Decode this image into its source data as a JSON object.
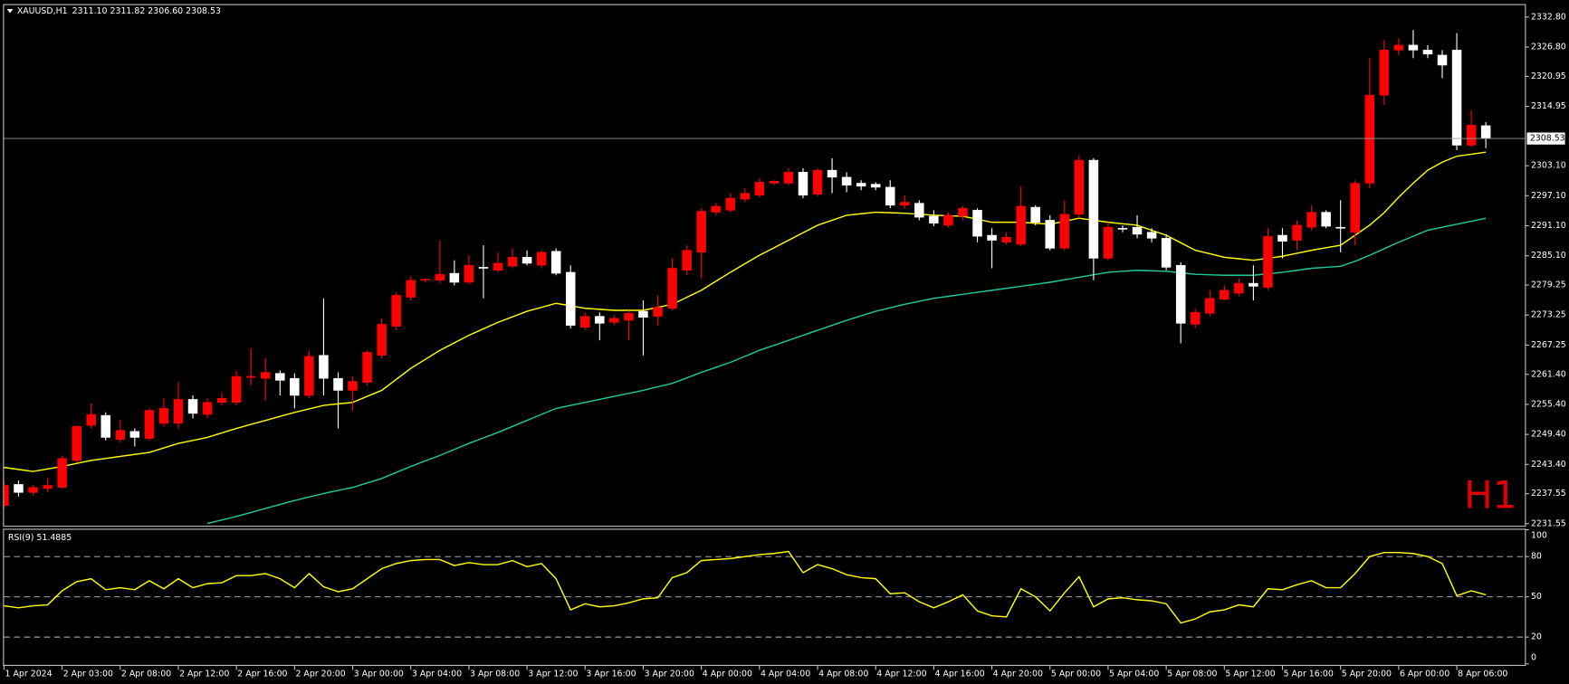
{
  "chart_data": [
    {
      "type": "candlestick",
      "title": "XAUUSD,H1",
      "info": "2311.10 2311.82 2306.60 2308.53",
      "watermark": "H1",
      "categories": [
        "1 Apr 2024",
        null,
        null,
        null,
        "2 Apr 03:00",
        null,
        null,
        null,
        "2 Apr 08:00",
        null,
        null,
        null,
        "2 Apr 12:00",
        null,
        null,
        null,
        "2 Apr 16:00",
        null,
        null,
        null,
        "2 Apr 20:00",
        null,
        null,
        null,
        "3 Apr 00:00",
        null,
        null,
        null,
        "3 Apr 04:00",
        null,
        null,
        null,
        "3 Apr 08:00",
        null,
        null,
        null,
        "3 Apr 12:00",
        null,
        null,
        null,
        "3 Apr 16:00",
        null,
        null,
        null,
        "3 Apr 20:00",
        null,
        null,
        null,
        "4 Apr 00:00",
        null,
        null,
        null,
        "4 Apr 04:00",
        null,
        null,
        null,
        "4 Apr 08:00",
        null,
        null,
        null,
        "4 Apr 12:00",
        null,
        null,
        null,
        "4 Apr 16:00",
        null,
        null,
        null,
        "4 Apr 20:00",
        null,
        null,
        null,
        "5 Apr 00:00",
        null,
        null,
        null,
        "5 Apr 04:00",
        null,
        null,
        null,
        "5 Apr 08:00",
        null,
        null,
        null,
        "5 Apr 12:00",
        null,
        null,
        null,
        "5 Apr 16:00",
        null,
        null,
        null,
        "5 Apr 20:00",
        null,
        null,
        null,
        "6 Apr 00:00",
        null,
        null,
        null,
        "8 Apr 06:00",
        null,
        null
      ],
      "open": [
        2235.2,
        2239.4,
        2237.8,
        2238.6,
        2238.8,
        2244.2,
        2251.2,
        2253.2,
        2248.4,
        2250.0,
        2248.6,
        2251.6,
        2251.6,
        2256.4,
        2253.4,
        2255.8,
        2255.8,
        2260.8,
        2260.6,
        2261.6,
        2260.6,
        2257.2,
        2265.2,
        2260.6,
        2258.2,
        2259.8,
        2265.2,
        2271.0,
        2276.8,
        2280.2,
        2280.2,
        2281.6,
        2279.8,
        2282.8,
        2282.2,
        2283.0,
        2284.8,
        2283.2,
        2286.0,
        2281.8,
        2270.8,
        2273.0,
        2271.8,
        2272.2,
        2274.0,
        2273.0,
        2274.6,
        2282.2,
        2285.8,
        2293.8,
        2294.2,
        2296.4,
        2297.2,
        2299.6,
        2299.6,
        2301.8,
        2297.4,
        2302.2,
        2300.8,
        2299.6,
        2299.4,
        2298.8,
        2295.2,
        2295.6,
        2293.0,
        2291.2,
        2293.0,
        2294.2,
        2289.2,
        2287.8,
        2287.4,
        2294.8,
        2292.2,
        2286.6,
        2293.4,
        2304.2,
        2284.6,
        2290.6,
        2290.8,
        2289.8,
        2288.6,
        2283.2,
        2271.4,
        2273.6,
        2276.4,
        2277.6,
        2279.6,
        2278.8,
        2289.2,
        2288.2,
        2290.8,
        2293.8,
        2290.8,
        2289.8,
        2299.6,
        2317.2,
        2326.2,
        2327.2,
        2326.2,
        2325.2,
        2326.2,
        2307.2,
        2311.1
      ],
      "high": [
        2240.2,
        2240.2,
        2239.2,
        2240.6,
        2245.2,
        2251.2,
        2255.6,
        2253.8,
        2252.2,
        2250.6,
        2254.6,
        2256.6,
        2259.8,
        2257.2,
        2256.6,
        2257.8,
        2262.2,
        2266.6,
        2264.6,
        2262.2,
        2261.6,
        2266.2,
        2276.6,
        2261.8,
        2261.0,
        2266.2,
        2272.6,
        2277.8,
        2281.0,
        2280.6,
        2288.2,
        2284.2,
        2285.2,
        2287.2,
        2285.8,
        2286.6,
        2286.2,
        2286.2,
        2286.6,
        2283.2,
        2273.8,
        2273.8,
        2273.2,
        2274.2,
        2276.2,
        2277.2,
        2284.6,
        2287.2,
        2294.6,
        2295.6,
        2297.6,
        2298.6,
        2300.6,
        2300.2,
        2302.6,
        2302.6,
        2302.6,
        2304.6,
        2301.8,
        2300.2,
        2299.8,
        2300.2,
        2297.2,
        2296.2,
        2294.2,
        2293.8,
        2295.0,
        2294.6,
        2290.6,
        2289.8,
        2299.0,
        2295.2,
        2293.2,
        2296.2,
        2305.2,
        2304.6,
        2291.8,
        2291.2,
        2293.2,
        2290.6,
        2289.4,
        2283.8,
        2274.6,
        2278.2,
        2279.2,
        2280.6,
        2283.2,
        2290.6,
        2290.6,
        2292.2,
        2295.2,
        2294.2,
        2296.2,
        2300.2,
        2324.6,
        2328.2,
        2328.6,
        2330.2,
        2327.2,
        2326.2,
        2329.6,
        2314.2,
        2311.82
      ],
      "low": [
        2234.6,
        2237.0,
        2237.2,
        2237.8,
        2238.6,
        2243.8,
        2250.6,
        2248.2,
        2247.8,
        2247.0,
        2248.2,
        2251.0,
        2250.6,
        2252.6,
        2252.6,
        2255.2,
        2255.2,
        2259.2,
        2256.2,
        2257.2,
        2254.6,
        2256.6,
        2257.2,
        2250.6,
        2254.2,
        2259.2,
        2264.6,
        2270.2,
        2276.2,
        2279.8,
        2279.6,
        2279.2,
        2279.4,
        2276.6,
        2281.8,
        2282.6,
        2283.2,
        2282.6,
        2281.2,
        2270.6,
        2270.2,
        2268.2,
        2271.2,
        2268.2,
        2265.2,
        2271.2,
        2274.2,
        2281.2,
        2280.6,
        2293.2,
        2293.8,
        2295.8,
        2296.8,
        2299.2,
        2299.2,
        2296.6,
        2297.0,
        2297.6,
        2297.8,
        2298.2,
        2298.2,
        2294.6,
        2294.6,
        2292.2,
        2291.0,
        2290.8,
        2292.2,
        2287.8,
        2282.6,
        2287.4,
        2287.0,
        2291.2,
        2286.2,
        2286.2,
        2292.6,
        2280.2,
        2284.2,
        2289.8,
        2288.6,
        2287.8,
        2282.2,
        2267.6,
        2270.6,
        2273.0,
        2276.2,
        2277.0,
        2276.2,
        2278.2,
        2284.6,
        2286.2,
        2290.2,
        2290.6,
        2285.8,
        2287.2,
        2298.6,
        2315.2,
        2325.2,
        2324.6,
        2324.6,
        2320.6,
        2306.2,
        2306.8,
        2306.6
      ],
      "close": [
        2239.2,
        2237.8,
        2238.8,
        2239.2,
        2244.6,
        2251.0,
        2253.4,
        2248.8,
        2250.2,
        2248.8,
        2254.2,
        2254.6,
        2256.4,
        2253.6,
        2255.8,
        2256.6,
        2261.0,
        2261.0,
        2261.8,
        2260.2,
        2257.2,
        2265.0,
        2260.6,
        2258.2,
        2260.0,
        2265.8,
        2271.4,
        2277.2,
        2280.2,
        2280.4,
        2281.4,
        2279.8,
        2283.2,
        2282.6,
        2283.6,
        2284.8,
        2283.6,
        2285.8,
        2281.6,
        2271.2,
        2273.0,
        2271.6,
        2272.6,
        2273.6,
        2272.8,
        2274.8,
        2282.6,
        2286.2,
        2294.0,
        2295.0,
        2296.6,
        2297.6,
        2299.8,
        2300.0,
        2301.8,
        2297.2,
        2302.2,
        2300.8,
        2299.2,
        2299.0,
        2298.8,
        2295.2,
        2295.8,
        2292.8,
        2291.6,
        2293.2,
        2294.6,
        2289.0,
        2288.2,
        2288.8,
        2295.0,
        2291.8,
        2286.6,
        2293.4,
        2304.2,
        2284.6,
        2290.8,
        2290.4,
        2289.4,
        2288.6,
        2282.8,
        2271.6,
        2273.8,
        2276.6,
        2278.2,
        2279.6,
        2279.0,
        2289.0,
        2288.0,
        2291.2,
        2293.8,
        2291.0,
        2290.6,
        2299.6,
        2317.2,
        2326.2,
        2327.2,
        2326.2,
        2325.4,
        2323.2,
        2307.2,
        2311.2,
        2308.53
      ],
      "bull_color": "#ff0000",
      "bear_color": "#ffffff",
      "overlays": [
        {
          "color": "#ffff00",
          "values": [
            2242.8,
            2242.4,
            2242.0,
            2242.5,
            2243.0,
            2243.6,
            2244.2,
            2244.6,
            2245.0,
            2245.4,
            2245.8,
            2246.7,
            2247.6,
            2248.2,
            2248.8,
            2249.7,
            2250.6,
            2251.4,
            2252.2,
            2253.0,
            2253.8,
            2254.5,
            2255.2,
            2255.5,
            2255.8,
            2257.0,
            2258.2,
            2260.4,
            2262.6,
            2264.4,
            2266.2,
            2267.7,
            2269.2,
            2270.5,
            2271.8,
            2272.9,
            2274.0,
            2274.8,
            2275.6,
            2275.1,
            2274.6,
            2274.4,
            2274.2,
            2274.2,
            2274.2,
            2274.8,
            2275.4,
            2276.8,
            2278.2,
            2280.0,
            2281.8,
            2283.5,
            2285.2,
            2286.7,
            2288.2,
            2289.7,
            2291.2,
            2292.2,
            2293.2,
            2293.5,
            2293.8,
            2293.7,
            2293.6,
            2293.4,
            2293.2,
            2293.1,
            2293.0,
            2292.4,
            2291.8,
            2291.8,
            2291.8,
            2291.6,
            2291.4,
            2292.0,
            2292.6,
            2292.2,
            2291.8,
            2291.5,
            2291.2,
            2290.2,
            2289.2,
            2287.7,
            2286.2,
            2285.5,
            2284.8,
            2284.5,
            2284.2,
            2284.6,
            2285.0,
            2285.6,
            2286.2,
            2286.7,
            2287.2,
            2289.2,
            2291.2,
            2293.7,
            2296.8,
            2299.6,
            2302.2,
            2303.8,
            2305.0,
            2305.4,
            2305.8
          ]
        },
        {
          "color": "#20c8a0",
          "values": [
            null,
            null,
            null,
            null,
            null,
            null,
            null,
            null,
            null,
            null,
            null,
            null,
            null,
            null,
            2231.6,
            2232.3,
            2233.0,
            2233.8,
            2234.6,
            2235.4,
            2236.2,
            2236.9,
            2237.6,
            2238.2,
            2238.8,
            2239.7,
            2240.6,
            2241.8,
            2243.0,
            2244.1,
            2245.2,
            2246.4,
            2247.6,
            2248.7,
            2249.8,
            2251.0,
            2252.2,
            2253.4,
            2254.6,
            2255.2,
            2255.8,
            2256.4,
            2257.0,
            2257.6,
            2258.2,
            2258.9,
            2259.6,
            2260.7,
            2261.8,
            2262.8,
            2263.8,
            2265.0,
            2266.2,
            2267.2,
            2268.2,
            2269.2,
            2270.2,
            2271.2,
            2272.2,
            2273.1,
            2274.0,
            2274.7,
            2275.4,
            2276.0,
            2276.6,
            2277.0,
            2277.4,
            2277.8,
            2278.2,
            2278.6,
            2279.0,
            2279.4,
            2279.8,
            2280.3,
            2280.8,
            2281.3,
            2281.8,
            2282.0,
            2282.2,
            2282.1,
            2282.0,
            2281.7,
            2281.4,
            2281.3,
            2281.2,
            2281.2,
            2281.2,
            2281.5,
            2281.8,
            2282.2,
            2282.6,
            2282.8,
            2283.0,
            2284.0,
            2285.2,
            2286.5,
            2287.8,
            2289.0,
            2290.2,
            2290.8,
            2291.4,
            2292.0,
            2292.6
          ]
        }
      ],
      "ylim": [
        2231.15,
        2335.2
      ],
      "yticks": [
        {
          "value": 2332.8,
          "label": "2332.80"
        },
        {
          "value": 2326.8,
          "label": "2326.80"
        },
        2320.95,
        2314.95,
        {
          "value": 2303.1,
          "label": "2303.10"
        },
        {
          "value": 2297.1,
          "label": "2297.10"
        },
        {
          "value": 2291.1,
          "label": "2291.10"
        },
        {
          "value": 2285.1,
          "label": "2285.10"
        },
        2279.25,
        2273.25,
        2267.25,
        {
          "value": 2261.4,
          "label": "2261.40"
        },
        {
          "value": 2255.4,
          "label": "2255.40"
        },
        {
          "value": 2249.4,
          "label": "2249.40"
        },
        {
          "value": 2243.4,
          "label": "2243.40"
        },
        2237.55,
        2231.55
      ],
      "last_price": 2308.53
    },
    {
      "type": "line",
      "title": "RSI(9) 51.4885",
      "color": "#ffff00",
      "values": [
        43.3,
        41.8,
        43.3,
        44.0,
        54.5,
        61.3,
        63.5,
        55.3,
        56.8,
        55.3,
        62.0,
        56.0,
        63.5,
        56.8,
        59.8,
        60.5,
        65.8,
        65.8,
        67.3,
        63.5,
        56.8,
        67.3,
        57.5,
        53.8,
        56.0,
        63.5,
        71.0,
        74.8,
        77.0,
        77.8,
        77.8,
        73.3,
        75.5,
        74.0,
        74.0,
        77.0,
        72.5,
        74.8,
        63.5,
        40.3,
        44.8,
        42.5,
        43.3,
        45.5,
        48.5,
        49.3,
        64.3,
        68.0,
        77.0,
        77.8,
        78.5,
        80.0,
        81.5,
        82.3,
        83.8,
        68.0,
        74.0,
        71.0,
        66.5,
        64.3,
        63.5,
        52.3,
        53.0,
        46.3,
        41.8,
        46.3,
        51.5,
        39.5,
        35.8,
        35.0,
        56.0,
        50.0,
        39.5,
        53.0,
        65.0,
        42.5,
        48.5,
        49.3,
        47.8,
        47.0,
        44.8,
        30.5,
        33.5,
        38.8,
        40.3,
        44.0,
        42.5,
        56.0,
        55.3,
        59.0,
        62.0,
        56.8,
        56.8,
        67.3,
        80.0,
        83.0,
        83.0,
        82.3,
        80.0,
        74.8,
        50.8,
        54.5,
        51.4885
      ],
      "ylim": [
        0,
        100
      ],
      "yticks": [
        100,
        80,
        50,
        20,
        0
      ]
    }
  ]
}
